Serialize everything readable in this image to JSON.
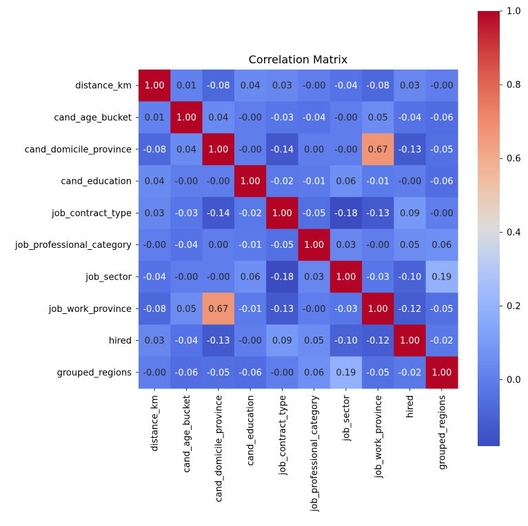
{
  "chart_data": {
    "type": "heatmap",
    "title": "Correlation Matrix",
    "xlabel": "",
    "ylabel": "",
    "labels": [
      "distance_km",
      "cand_age_bucket",
      "cand_domicile_province",
      "cand_education",
      "job_contract_type",
      "job_professional_category",
      "job_sector",
      "job_work_province",
      "hired",
      "grouped_regions"
    ],
    "values": [
      [
        1.0,
        0.01,
        -0.08,
        0.04,
        0.03,
        -0.0,
        -0.04,
        -0.08,
        0.03,
        -0.0
      ],
      [
        0.01,
        1.0,
        0.04,
        -0.0,
        -0.03,
        -0.04,
        -0.0,
        0.05,
        -0.04,
        -0.06
      ],
      [
        -0.08,
        0.04,
        1.0,
        -0.0,
        -0.14,
        0.0,
        -0.0,
        0.67,
        -0.13,
        -0.05
      ],
      [
        0.04,
        -0.0,
        -0.0,
        1.0,
        -0.02,
        -0.01,
        0.06,
        -0.01,
        -0.0,
        -0.06
      ],
      [
        0.03,
        -0.03,
        -0.14,
        -0.02,
        1.0,
        -0.05,
        -0.18,
        -0.13,
        0.09,
        -0.0
      ],
      [
        -0.0,
        -0.04,
        0.0,
        -0.01,
        -0.05,
        1.0,
        0.03,
        -0.0,
        0.05,
        0.06
      ],
      [
        -0.04,
        -0.0,
        -0.0,
        0.06,
        -0.18,
        0.03,
        1.0,
        -0.03,
        -0.1,
        0.19
      ],
      [
        -0.08,
        0.05,
        0.67,
        -0.01,
        -0.13,
        -0.0,
        -0.03,
        1.0,
        -0.12,
        -0.05
      ],
      [
        0.03,
        -0.04,
        -0.13,
        -0.0,
        0.09,
        0.05,
        -0.1,
        -0.12,
        1.0,
        -0.02
      ],
      [
        -0.0,
        -0.06,
        -0.05,
        -0.06,
        -0.0,
        0.06,
        0.19,
        -0.05,
        -0.02,
        1.0
      ]
    ],
    "color_scale": {
      "colormap": "coolwarm",
      "vmin": -0.18,
      "vmax": 1.0,
      "ticks": [
        0.0,
        0.2,
        0.4,
        0.6,
        0.8,
        1.0
      ],
      "tick_labels": [
        "0.0",
        "0.2",
        "0.4",
        "0.6",
        "0.8",
        "1.0"
      ]
    },
    "annotations": true,
    "annotation_format": "0.00",
    "grid": false,
    "legend": "colorbar-right"
  }
}
